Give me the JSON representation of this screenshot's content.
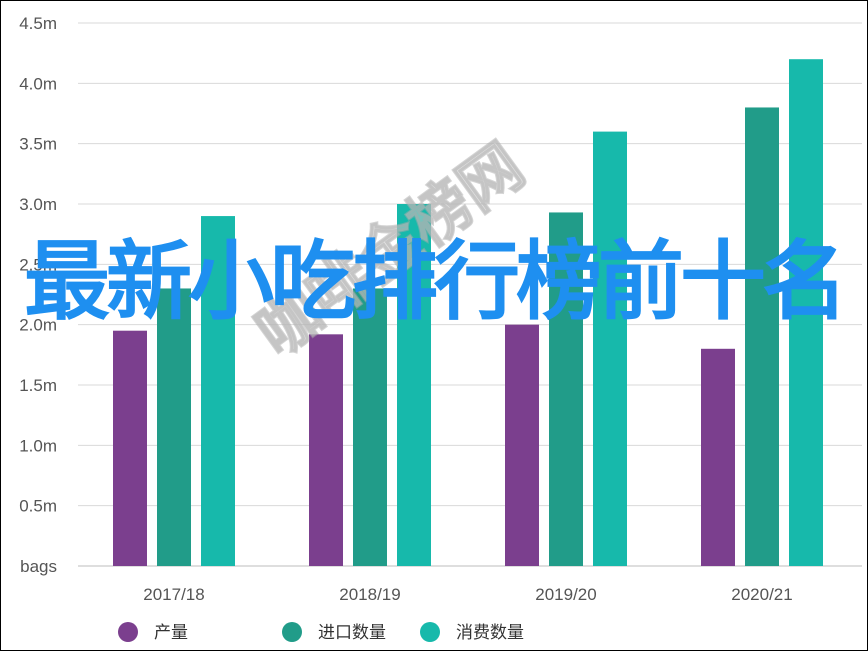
{
  "chart_data": {
    "type": "bar",
    "categories": [
      "2017/18",
      "2018/19",
      "2019/20",
      "2020/21"
    ],
    "y_ticks": [
      "bags",
      "0.5m",
      "1.0m",
      "1.5m",
      "2.0m",
      "2.5m",
      "3.0m",
      "3.5m",
      "4.0m",
      "4.5m"
    ],
    "ylim": [
      0,
      4.5
    ],
    "grid": true,
    "legend_position": "bottom",
    "series": [
      {
        "name": "产量",
        "color": "#7b3f8e",
        "values": [
          1.95,
          1.92,
          2.0,
          1.8
        ]
      },
      {
        "name": "进口数量",
        "color": "#219c89",
        "values": [
          2.3,
          2.3,
          2.93,
          3.8
        ]
      },
      {
        "name": "消费数量",
        "color": "#17b9ab",
        "values": [
          2.9,
          3.0,
          3.6,
          4.2
        ]
      }
    ]
  },
  "overlay": {
    "title": "最新小吃排行榜前十名",
    "watermark": "咖啡金榜网"
  }
}
